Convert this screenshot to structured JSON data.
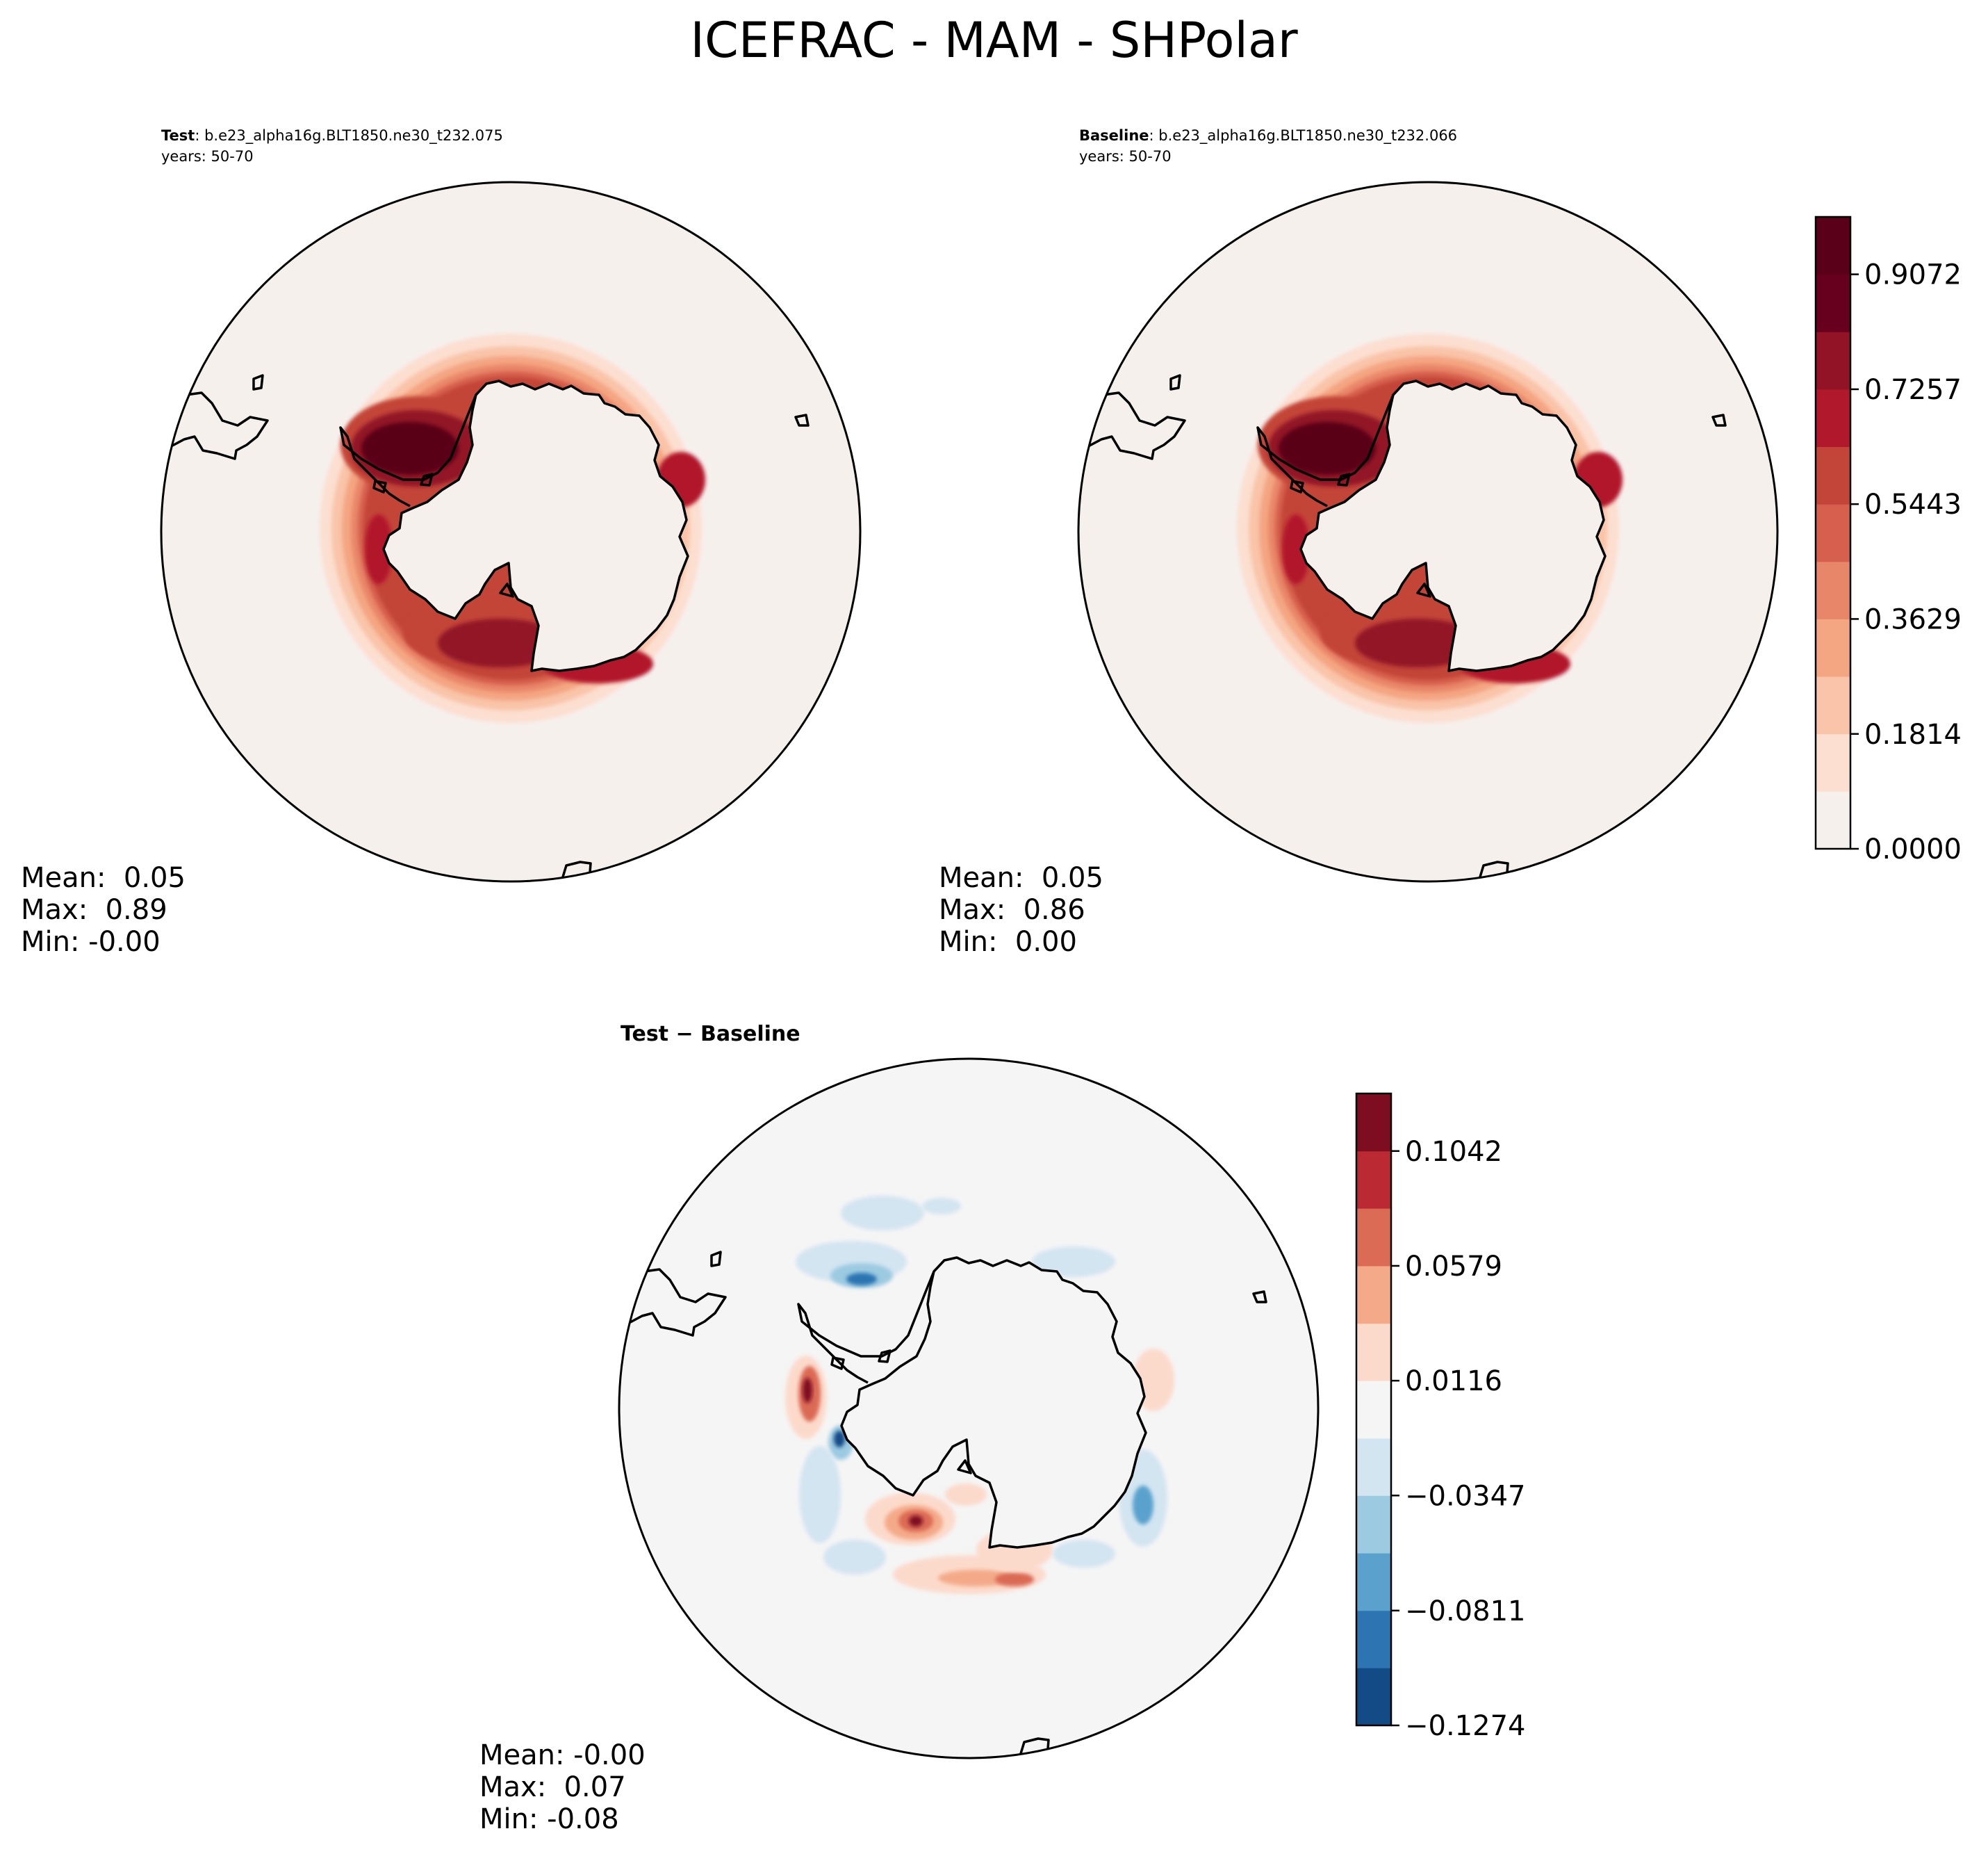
{
  "title": "ICEFRAC - MAM - SHPolar",
  "panels": {
    "test": {
      "label": "Test",
      "case": ": b.e23_alpha16g.BLT1850.ne30_t232.075",
      "years": "years: 50-70",
      "stats": {
        "mean": "Mean:  0.05",
        "max": "Max:  0.89",
        "min": "Min: -0.00"
      }
    },
    "baseline": {
      "label": "Baseline",
      "case": ": b.e23_alpha16g.BLT1850.ne30_t232.066",
      "years": "years: 50-70",
      "stats": {
        "mean": "Mean:  0.05",
        "max": "Max:  0.86",
        "min": "Min:  0.00"
      }
    },
    "diff": {
      "title": "Test − Baseline",
      "stats": {
        "mean": "Mean: -0.00",
        "max": "Max:  0.07",
        "min": "Min: -0.08"
      }
    }
  },
  "chart_data": [
    {
      "type": "heatmap",
      "name": "Test",
      "colorbar": {
        "ticks": [
          "0.0000",
          "0.1814",
          "0.3629",
          "0.5443",
          "0.7257",
          "0.9072"
        ],
        "levels": [
          0.0,
          0.0907,
          0.1814,
          0.2722,
          0.3629,
          0.4536,
          0.5443,
          0.635,
          0.7257,
          0.8165,
          0.9072,
          0.9979
        ],
        "colors": [
          "#f6f0ed",
          "#fcdfd0",
          "#f9c4a9",
          "#f4a582",
          "#e8866a",
          "#d6604d",
          "#c34539",
          "#b2182b",
          "#921326",
          "#67001f",
          "#5a0019"
        ]
      },
      "stats": {
        "mean": 0.05,
        "max": 0.89,
        "min": -0.0
      }
    },
    {
      "type": "heatmap",
      "name": "Baseline",
      "colorbar": {
        "ticks": [
          "0.0000",
          "0.1814",
          "0.3629",
          "0.5443",
          "0.7257",
          "0.9072"
        ],
        "levels": [
          0.0,
          0.0907,
          0.1814,
          0.2722,
          0.3629,
          0.4536,
          0.5443,
          0.635,
          0.7257,
          0.8165,
          0.9072,
          0.9979
        ],
        "colors": [
          "#f6f0ed",
          "#fcdfd0",
          "#f9c4a9",
          "#f4a582",
          "#e8866a",
          "#d6604d",
          "#c34539",
          "#b2182b",
          "#921326",
          "#67001f",
          "#5a0019"
        ]
      },
      "stats": {
        "mean": 0.05,
        "max": 0.86,
        "min": 0.0
      }
    },
    {
      "type": "heatmap",
      "name": "Test − Baseline",
      "colorbar": {
        "ticks": [
          "−0.1274",
          "−0.0811",
          "−0.0347",
          "0.0116",
          "0.0579",
          "0.1042"
        ],
        "levels": [
          -0.1274,
          -0.1042,
          -0.0811,
          -0.0579,
          -0.0347,
          -0.0116,
          0.0116,
          0.0347,
          0.0579,
          0.0811,
          0.1042,
          0.1274
        ],
        "colors": [
          "#134b87",
          "#2c74b2",
          "#5aa2cd",
          "#9ccae1",
          "#d3e5f1",
          "#f5f5f5",
          "#fcdacb",
          "#f4aa89",
          "#db6b55",
          "#bb2a33",
          "#7f0d22"
        ]
      },
      "stats": {
        "mean": -0.0,
        "max": 0.07,
        "min": -0.08
      }
    }
  ]
}
